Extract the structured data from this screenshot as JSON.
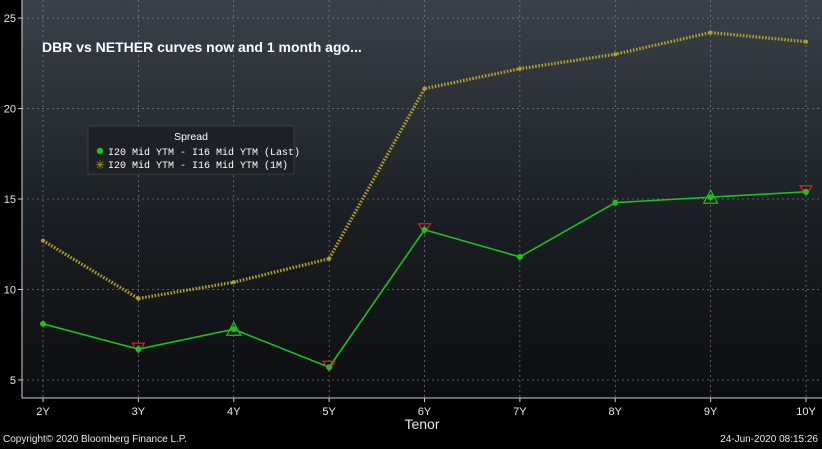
{
  "chart_data": {
    "type": "line",
    "title": "DBR vs NETHER curves now and 1 month ago...",
    "xlabel": "Tenor",
    "ylabel": "",
    "categories": [
      "2Y",
      "3Y",
      "4Y",
      "5Y",
      "6Y",
      "7Y",
      "8Y",
      "9Y",
      "10Y"
    ],
    "ylim": [
      4,
      26
    ],
    "yticks": [
      5,
      10,
      15,
      20,
      25
    ],
    "grid": true,
    "legend": {
      "title": "Spread",
      "placement": "upper-left"
    },
    "series": [
      {
        "name": "I20 Mid YTM - I16 Mid YTM (Last)",
        "color": "#1fbf1f",
        "style": "solid",
        "values": [
          8.1,
          6.7,
          7.8,
          5.7,
          13.3,
          11.8,
          14.8,
          15.1,
          15.4
        ],
        "markers": [
          "none",
          "min",
          "max",
          "min",
          "min",
          "none",
          "none",
          "max",
          "min"
        ]
      },
      {
        "name": "I20 Mid YTM - I16 Mid YTM (1M)",
        "color": "#b0a02a",
        "style": "dotted",
        "values": [
          12.7,
          9.5,
          10.4,
          11.7,
          21.1,
          22.2,
          23.0,
          24.2,
          23.7
        ]
      }
    ]
  },
  "footer": {
    "copyright": "Copyright© 2020 Bloomberg Finance L.P.",
    "timestamp": "24-Jun-2020 08:15:26"
  }
}
